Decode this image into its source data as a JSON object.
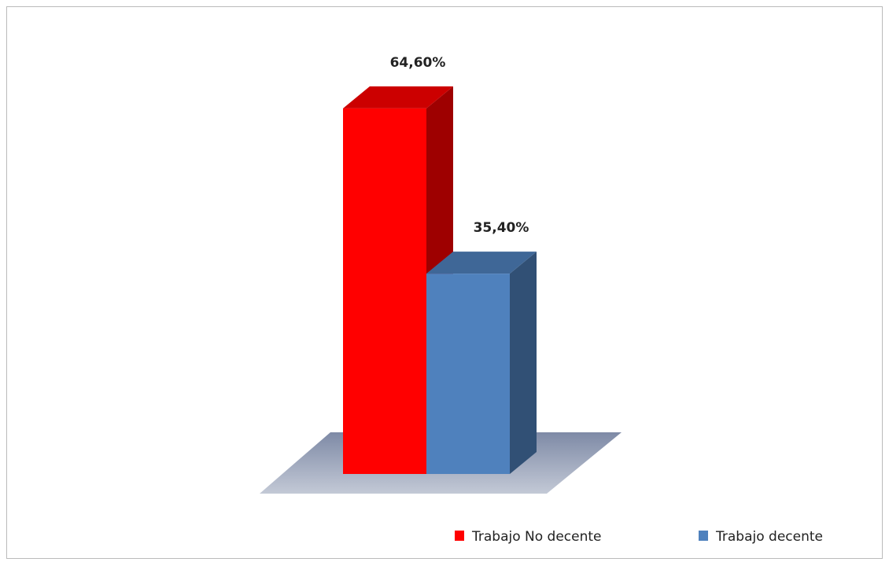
{
  "chart_data": {
    "type": "bar3d",
    "categories": [
      null
    ],
    "series": [
      {
        "name": "Trabajo No decente",
        "color": "#ff0000",
        "values": [
          64.6
        ],
        "value_labels": [
          "64,60%"
        ]
      },
      {
        "name": "Trabajo decente",
        "color": "#4f81bd",
        "values": [
          35.4
        ],
        "value_labels": [
          "35,40%"
        ]
      }
    ]
  }
}
